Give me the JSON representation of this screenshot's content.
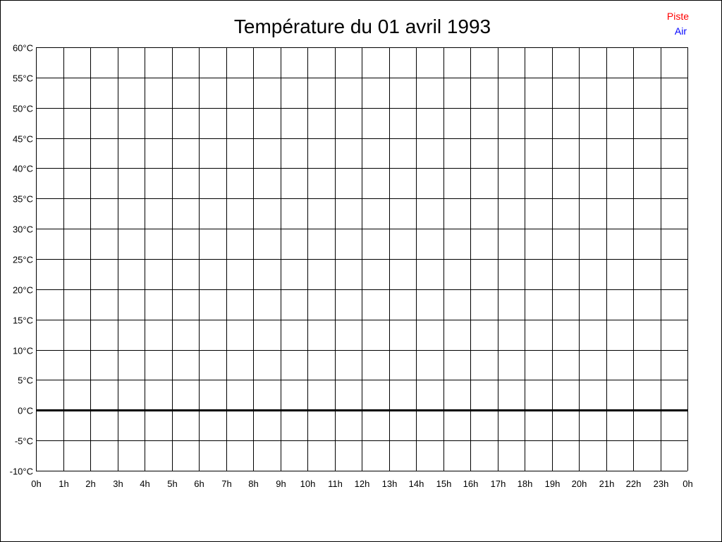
{
  "chart_data": {
    "type": "line",
    "title": "Température du 01 avril 1993",
    "xlabel": "",
    "ylabel": "",
    "x_ticks": [
      "0h",
      "1h",
      "2h",
      "3h",
      "4h",
      "5h",
      "6h",
      "7h",
      "8h",
      "9h",
      "10h",
      "11h",
      "12h",
      "13h",
      "14h",
      "15h",
      "16h",
      "17h",
      "18h",
      "19h",
      "20h",
      "21h",
      "22h",
      "23h",
      "0h"
    ],
    "y_ticks": [
      "60°C",
      "55°C",
      "50°C",
      "45°C",
      "40°C",
      "35°C",
      "30°C",
      "25°C",
      "20°C",
      "15°C",
      "10°C",
      "5°C",
      "0°C",
      "-5°C",
      "-10°C"
    ],
    "xlim": [
      0,
      24
    ],
    "ylim": [
      -10,
      60
    ],
    "y_step": 5,
    "grid": true,
    "zero_line_emphasized": true,
    "legend_position": "top-right",
    "series": [
      {
        "name": "Piste",
        "color": "#ff0000",
        "values": []
      },
      {
        "name": "Air",
        "color": "#0000ff",
        "values": []
      }
    ]
  }
}
